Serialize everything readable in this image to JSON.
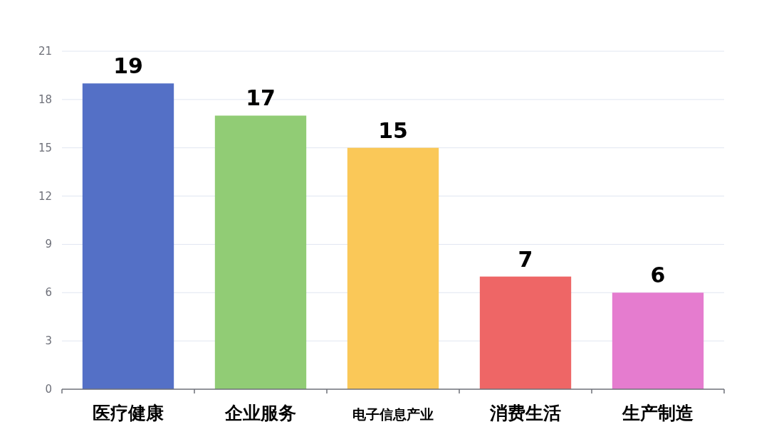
{
  "chart_data": {
    "type": "bar",
    "categories": [
      "医疗健康",
      "企业服务",
      "电子信息产业",
      "消费生活",
      "生产制造"
    ],
    "values": [
      19,
      17,
      15,
      7,
      6
    ],
    "colors": [
      "#5470c6",
      "#91cc75",
      "#fac858",
      "#ee6666",
      "#e57ccf"
    ],
    "ylim": [
      0,
      21
    ],
    "yticks": [
      0,
      3,
      6,
      9,
      12,
      15,
      18,
      21
    ],
    "grid": "y",
    "data_labels": true
  }
}
